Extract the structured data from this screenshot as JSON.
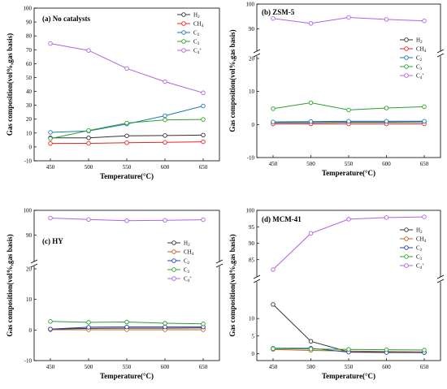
{
  "chart_data": [
    {
      "type": "line",
      "title": "(a) No catalysts",
      "xlabel": "Temperature(°C)",
      "ylabel": "Gas composition(vol%,gas basis)",
      "x": [
        450,
        500,
        550,
        600,
        650
      ],
      "xticks": [
        "450",
        "500",
        "550",
        "600",
        "650"
      ],
      "ylim": [
        -10,
        100
      ],
      "yticks": [
        -10,
        0,
        10,
        20,
        30,
        40,
        50,
        60,
        70,
        80,
        90,
        100
      ],
      "legend_position": "top-right",
      "series": [
        {
          "name": "H",
          "sub": "2",
          "color": "#333333",
          "values": [
            6.5,
            6.5,
            8,
            8.2,
            8.5
          ]
        },
        {
          "name": "CH",
          "sub": "4",
          "color": "#e8241c",
          "values": [
            2.5,
            2.6,
            3.0,
            3.3,
            3.7
          ]
        },
        {
          "name": "C",
          "sub": "2",
          "color": "#1f77b4",
          "values": [
            10.5,
            11.5,
            16.5,
            22.5,
            29.5
          ]
        },
        {
          "name": "C",
          "sub": "3",
          "color": "#2ca02c",
          "values": [
            6,
            11.8,
            17.2,
            19.5,
            19.8
          ]
        },
        {
          "name": "C",
          "sub": "4",
          "sup": "+",
          "color": "#b460e6",
          "values": [
            74.5,
            69.5,
            56.5,
            47,
            39
          ]
        }
      ]
    },
    {
      "type": "line",
      "title": "(b) ZSM-5",
      "xlabel": "Temperature(°C)",
      "ylabel": "Gas composition(vol%,gas basis)",
      "x": [
        450,
        500,
        550,
        600,
        650
      ],
      "xticks": [
        "450",
        "500",
        "550",
        "600",
        "650"
      ],
      "axis_break": true,
      "ylim_lower": [
        -10,
        20
      ],
      "yticks_lower": [
        -10,
        0,
        10,
        20
      ],
      "ylim_upper": [
        80,
        100
      ],
      "yticks_upper": [
        90,
        100
      ],
      "legend_position": "center-right",
      "series": [
        {
          "name": "H",
          "sub": "2",
          "color": "#333333",
          "values": [
            0.6,
            0.6,
            0.7,
            0.7,
            0.8
          ]
        },
        {
          "name": "CH",
          "sub": "4",
          "color": "#e8241c",
          "values": [
            0.2,
            0.2,
            0.2,
            0.2,
            0.2
          ]
        },
        {
          "name": "C",
          "sub": "2",
          "color": "#1f77b4",
          "values": [
            0.8,
            0.9,
            1.0,
            1.0,
            1.0
          ]
        },
        {
          "name": "C",
          "sub": "3",
          "color": "#2ca02c",
          "values": [
            4.8,
            6.6,
            4.4,
            5.0,
            5.4
          ]
        },
        {
          "name": "C",
          "sub": "4",
          "sup": "+",
          "color": "#b460e6",
          "values": [
            94.2,
            92.2,
            94.6,
            93.8,
            93.2
          ]
        }
      ]
    },
    {
      "type": "line",
      "title": "(c) HY",
      "xlabel": "Temperature(°C)",
      "ylabel": "Gas composition(vol%,gas basis)",
      "x": [
        450,
        500,
        550,
        600,
        650
      ],
      "xticks": [
        "450",
        "500",
        "550",
        "600",
        "650"
      ],
      "axis_break": true,
      "ylim_lower": [
        -10,
        20
      ],
      "yticks_lower": [
        -10,
        0,
        10,
        20
      ],
      "ylim_upper": [
        80,
        100
      ],
      "yticks_upper": [
        90,
        100
      ],
      "legend_position": "center-right",
      "series": [
        {
          "name": "H",
          "sub": "2",
          "color": "#333333",
          "values": [
            0.3,
            0.5,
            0.6,
            0.6,
            0.7
          ]
        },
        {
          "name": "CH",
          "sub": "4",
          "color": "#c0621a",
          "values": [
            0.1,
            0.1,
            0.1,
            0.1,
            0.1
          ]
        },
        {
          "name": "C",
          "sub": "2",
          "color": "#1f3fb4",
          "values": [
            0.3,
            0.9,
            1.0,
            1.0,
            1.0
          ]
        },
        {
          "name": "C",
          "sub": "3",
          "color": "#2ca02c",
          "values": [
            2.8,
            2.5,
            2.6,
            2.2,
            2.0
          ]
        },
        {
          "name": "C",
          "sub": "4",
          "sup": "+",
          "color": "#b460e6",
          "values": [
            96.9,
            96.3,
            95.8,
            96.0,
            96.2
          ]
        }
      ]
    },
    {
      "type": "line",
      "title": "(d) MCM-41",
      "xlabel": "Temperature(°C)",
      "ylabel": "Gas composition(vol%,gas basis)",
      "x": [
        450,
        500,
        550,
        600,
        650
      ],
      "xticks": [
        "450",
        "500",
        "550",
        "600",
        "650"
      ],
      "axis_break": true,
      "ylim_lower": [
        -2,
        20
      ],
      "yticks_lower": [
        0,
        5,
        10
      ],
      "ylim_upper": [
        80,
        100
      ],
      "yticks_upper": [
        85,
        90,
        95,
        100
      ],
      "legend_position": "center-right",
      "series": [
        {
          "name": "H",
          "sub": "2",
          "color": "#333333",
          "values": [
            14.0,
            3.5,
            0.5,
            0.4,
            0.3
          ]
        },
        {
          "name": "CH",
          "sub": "4",
          "color": "#c0621a",
          "values": [
            1.2,
            0.9,
            0.7,
            0.6,
            0.5
          ]
        },
        {
          "name": "C",
          "sub": "2",
          "color": "#1f3fb4",
          "values": [
            1.5,
            1.5,
            0.4,
            0.3,
            0.3
          ]
        },
        {
          "name": "C",
          "sub": "3",
          "color": "#2ca02c",
          "values": [
            1.4,
            1.3,
            1.2,
            1.1,
            1.0
          ]
        },
        {
          "name": "C",
          "sub": "4",
          "sup": "+",
          "color": "#b460e6",
          "values": [
            82.0,
            93.0,
            97.3,
            97.8,
            98.0
          ]
        }
      ]
    }
  ]
}
